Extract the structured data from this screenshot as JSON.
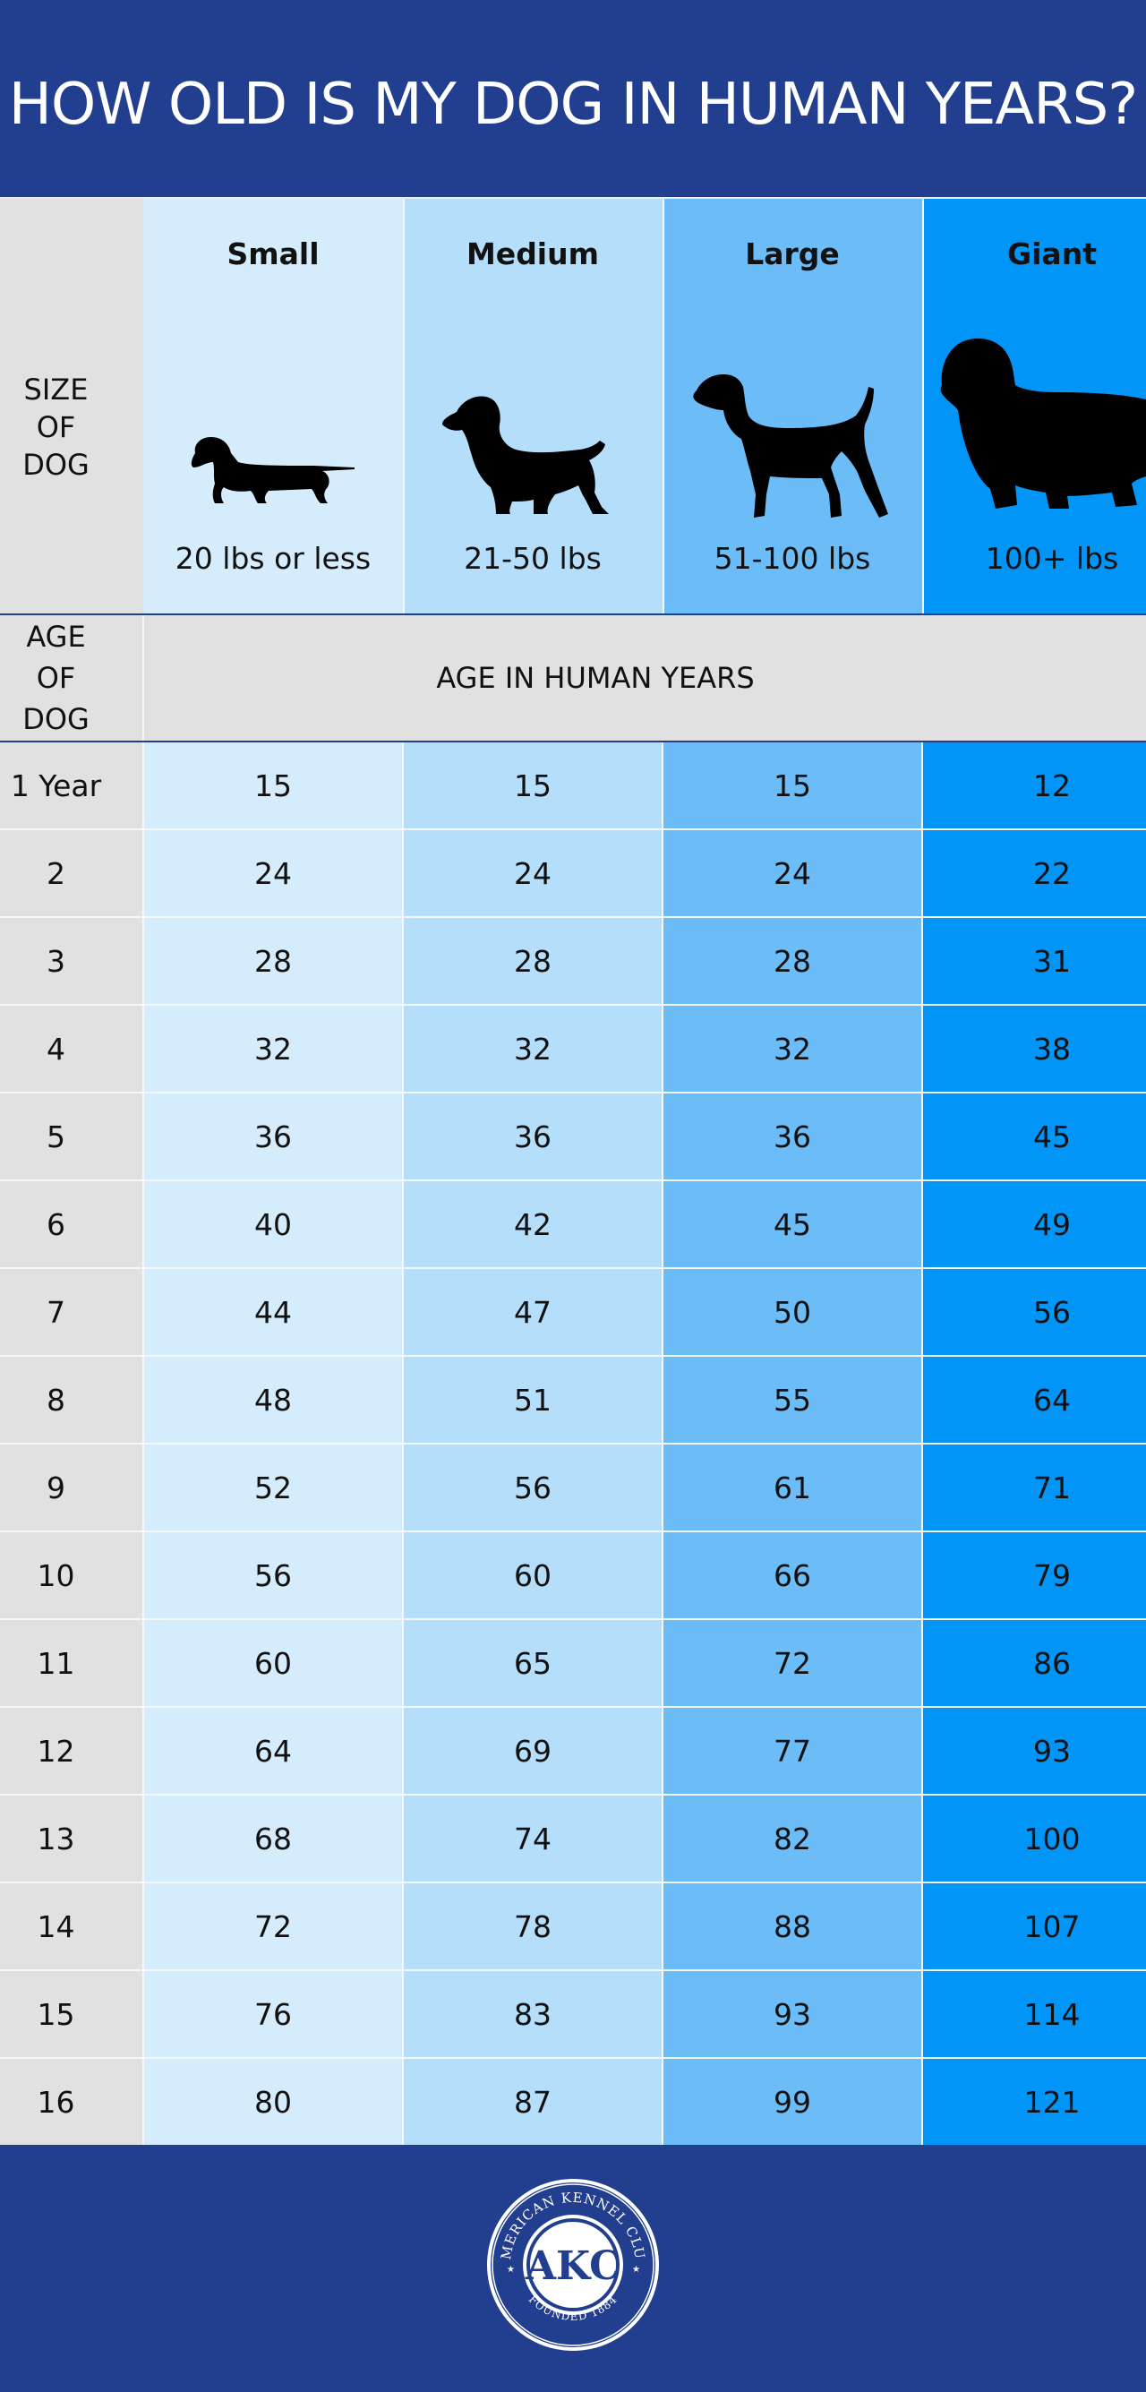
{
  "header": {
    "title": "HOW OLD IS MY DOG IN HUMAN YEARS?"
  },
  "size_header": {
    "label_line1": "SIZE",
    "label_line2": "OF DOG",
    "sizes": [
      {
        "name": "Small",
        "weight": "20 lbs or less",
        "icon": "dachshund-silhouette-icon"
      },
      {
        "name": "Medium",
        "weight": "21-50 lbs",
        "icon": "spaniel-silhouette-icon"
      },
      {
        "name": "Large",
        "weight": "51-100 lbs",
        "icon": "pointer-silhouette-icon"
      },
      {
        "name": "Giant",
        "weight": "100+ lbs",
        "icon": "newfoundland-silhouette-icon"
      }
    ]
  },
  "age_header": {
    "label_line1": "AGE",
    "label_line2": "OF DOG",
    "human_years_label": "AGE IN HUMAN YEARS"
  },
  "colors": {
    "small": "#d4ecfc",
    "medium": "#b5defb",
    "large": "#6cbcf8",
    "giant": "#0095f7",
    "label": "#e1e1e1",
    "brand": "#223e8f"
  },
  "chart_data": {
    "type": "table",
    "title": "HOW OLD IS MY DOG IN HUMAN YEARS?",
    "columns": [
      "Small",
      "Medium",
      "Large",
      "Giant"
    ],
    "rows": [
      {
        "age": "1 Year",
        "values": [
          "15",
          "15",
          "15",
          "12"
        ]
      },
      {
        "age": "2",
        "values": [
          "24",
          "24",
          "24",
          "22"
        ]
      },
      {
        "age": "3",
        "values": [
          "28",
          "28",
          "28",
          "31"
        ]
      },
      {
        "age": "4",
        "values": [
          "32",
          "32",
          "32",
          "38"
        ]
      },
      {
        "age": "5",
        "values": [
          "36",
          "36",
          "36",
          "45"
        ]
      },
      {
        "age": "6",
        "values": [
          "40",
          "42",
          "45",
          "49"
        ]
      },
      {
        "age": "7",
        "values": [
          "44",
          "47",
          "50",
          "56"
        ]
      },
      {
        "age": "8",
        "values": [
          "48",
          "51",
          "55",
          "64"
        ]
      },
      {
        "age": "9",
        "values": [
          "52",
          "56",
          "61",
          "71"
        ]
      },
      {
        "age": "10",
        "values": [
          "56",
          "60",
          "66",
          "79"
        ]
      },
      {
        "age": "11",
        "values": [
          "60",
          "65",
          "72",
          "86"
        ]
      },
      {
        "age": "12",
        "values": [
          "64",
          "69",
          "77",
          "93"
        ]
      },
      {
        "age": "13",
        "values": [
          "68",
          "74",
          "82",
          "100"
        ]
      },
      {
        "age": "14",
        "values": [
          "72",
          "78",
          "88",
          "107"
        ]
      },
      {
        "age": "15",
        "values": [
          "76",
          "83",
          "93",
          "114"
        ]
      },
      {
        "age": "16",
        "values": [
          "80",
          "87",
          "99",
          "121"
        ]
      }
    ]
  },
  "footer": {
    "logo_letters": "AKC",
    "logo_ring_top": "AMERICAN KENNEL CLUB",
    "logo_ring_bottom": "FOUNDED 1884"
  }
}
